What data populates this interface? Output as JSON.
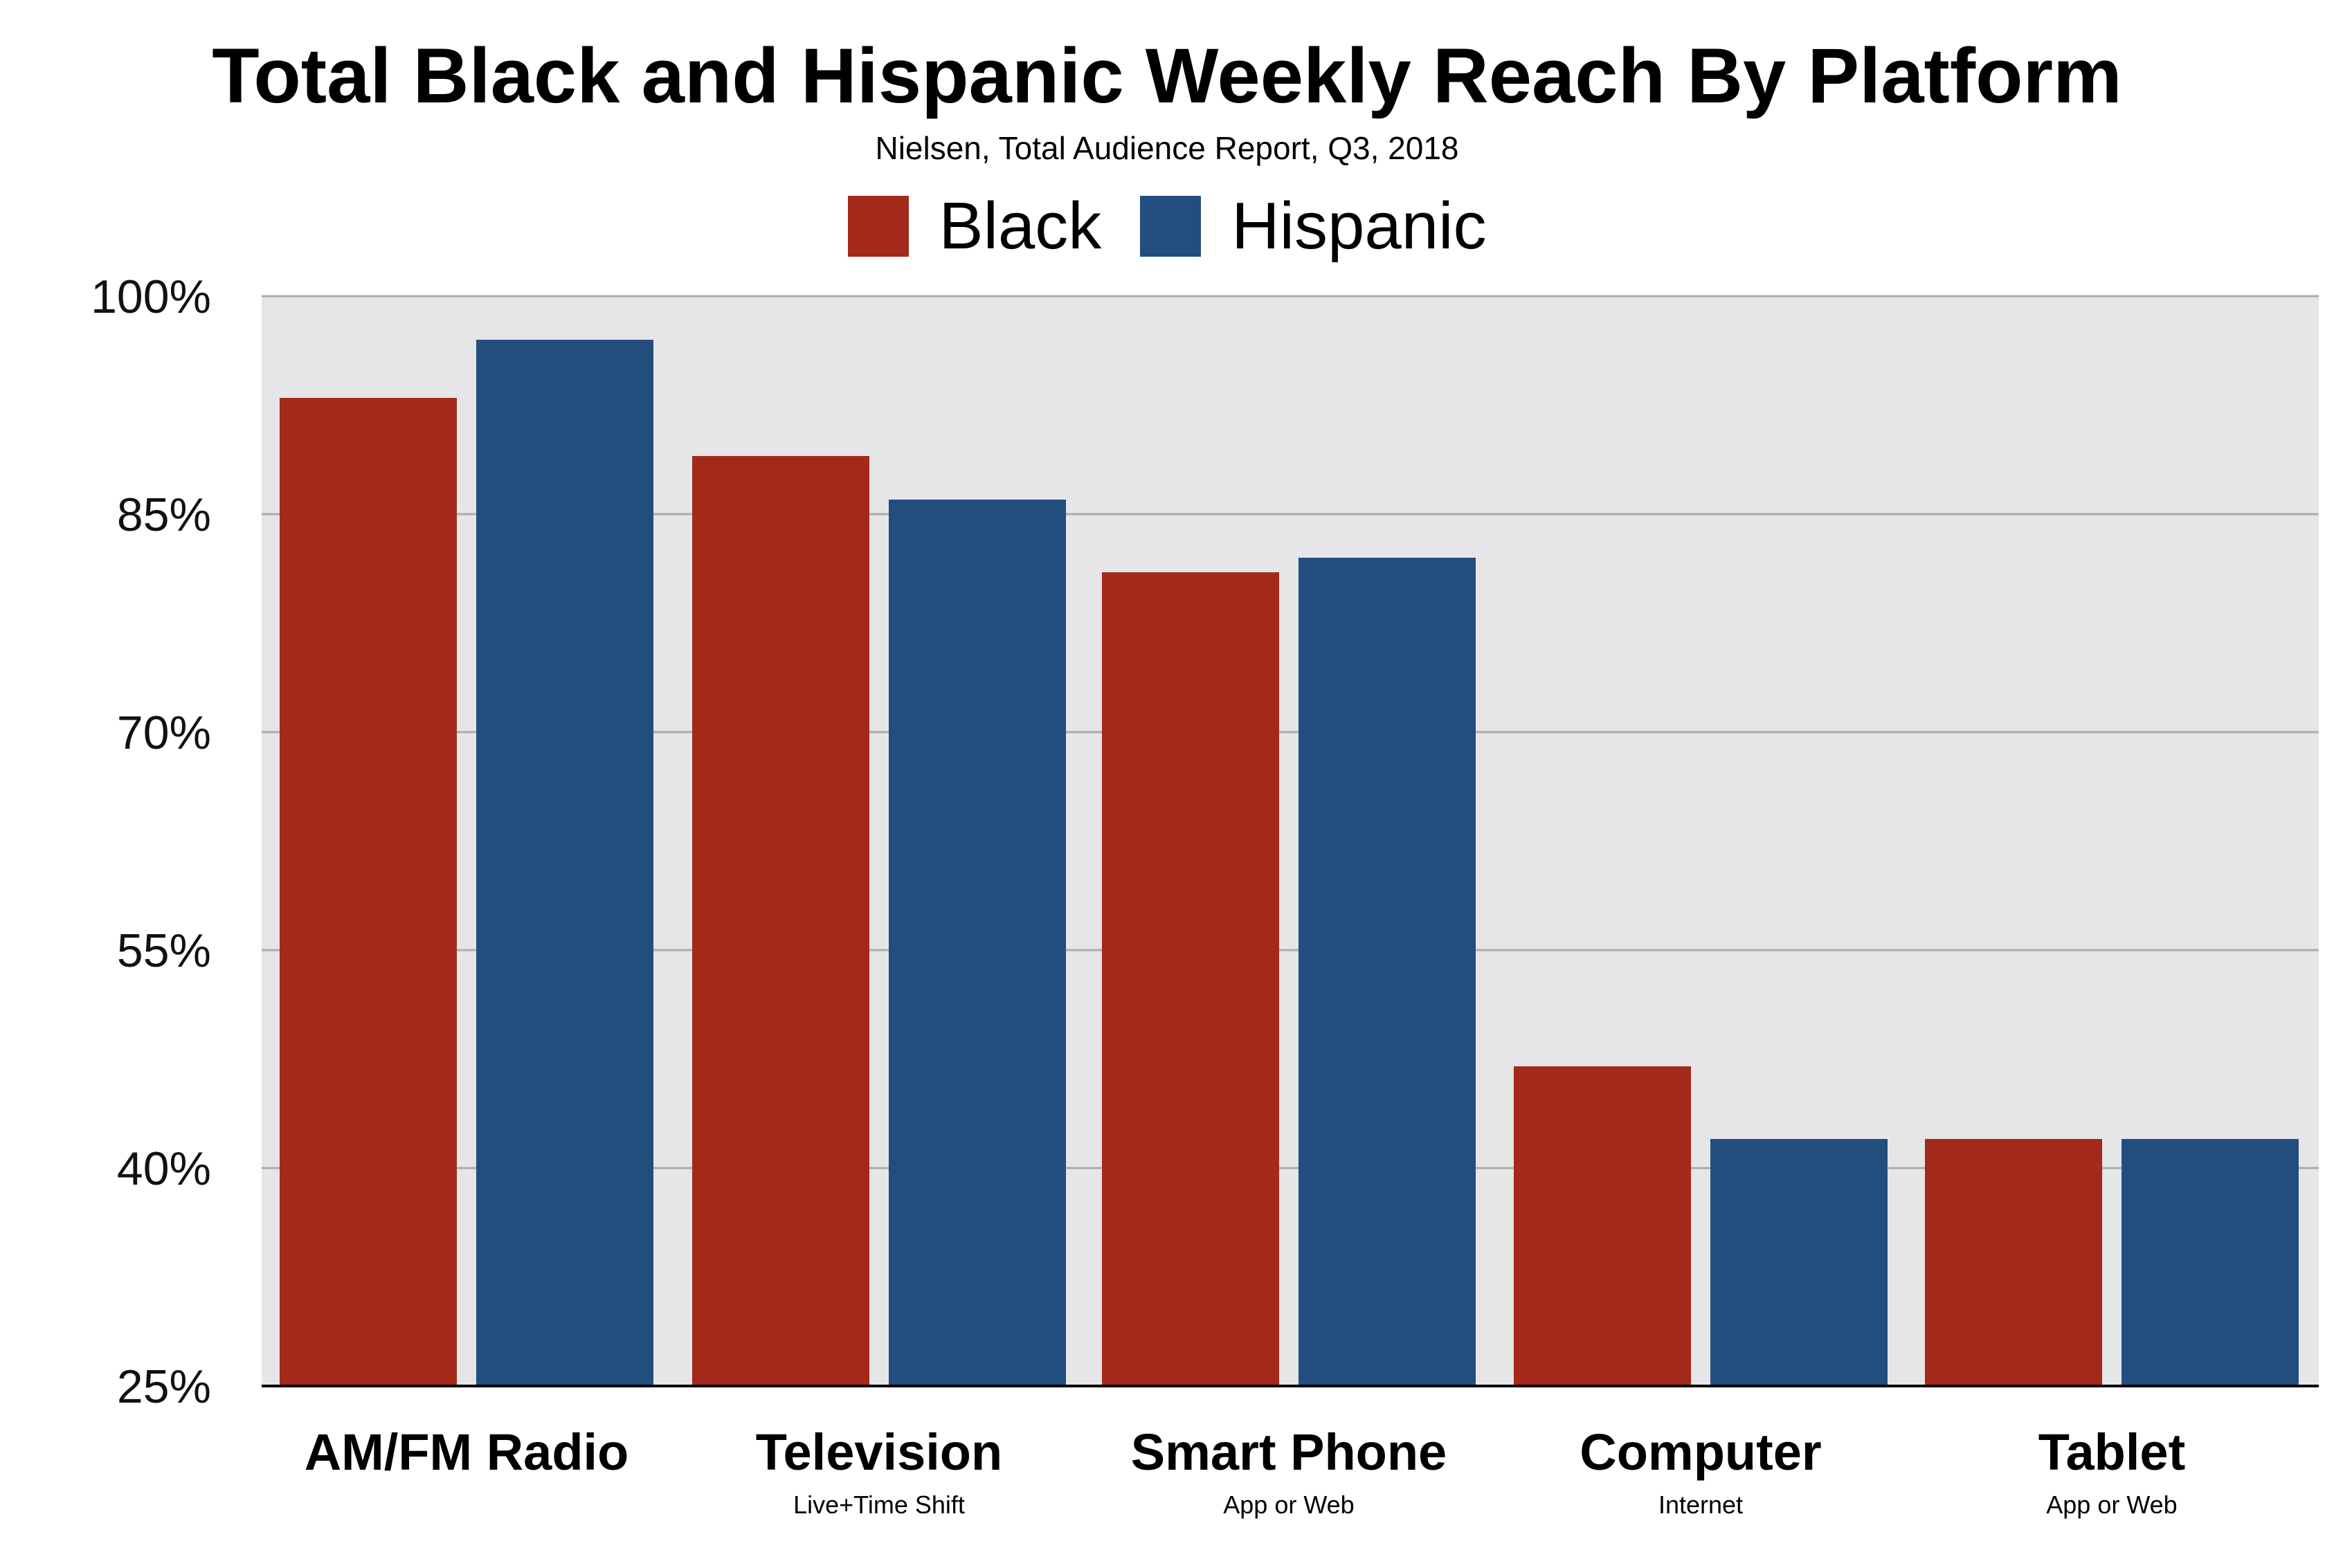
{
  "title": "Total Black and Hispanic Weekly Reach By Platform",
  "subtitle": "Nielsen, Total Audience Report, Q3, 2018",
  "colors": {
    "black_series": "#A3291A",
    "hispanic_series": "#224E7E",
    "plot_background": "#E6E5E8",
    "gridline": "#ABABAD",
    "axis": "#000000"
  },
  "chart_data": {
    "type": "bar",
    "title": "Total Black and Hispanic Weekly Reach By Platform",
    "subtitle": "Nielsen, Total Audience Report, Q3, 2018",
    "categories": [
      "AM/FM Radio",
      "Television",
      "Smart Phone",
      "Computer",
      "Tablet"
    ],
    "category_sublabels": [
      "",
      "Live+Time Shift",
      "App or Web",
      "Internet",
      "App or Web"
    ],
    "series": [
      {
        "name": "Black",
        "values": [
          93,
          89,
          81,
          47,
          42
        ]
      },
      {
        "name": "Hispanic",
        "values": [
          97,
          86,
          82,
          42,
          42
        ]
      }
    ],
    "ylim": [
      25,
      100
    ],
    "yticks": [
      25,
      40,
      55,
      70,
      85,
      100
    ],
    "ytick_labels": [
      "25%",
      "40%",
      "55%",
      "70%",
      "85%",
      "100%"
    ],
    "xlabel": "",
    "ylabel": "",
    "grid": true,
    "legend_position": "top-center"
  }
}
